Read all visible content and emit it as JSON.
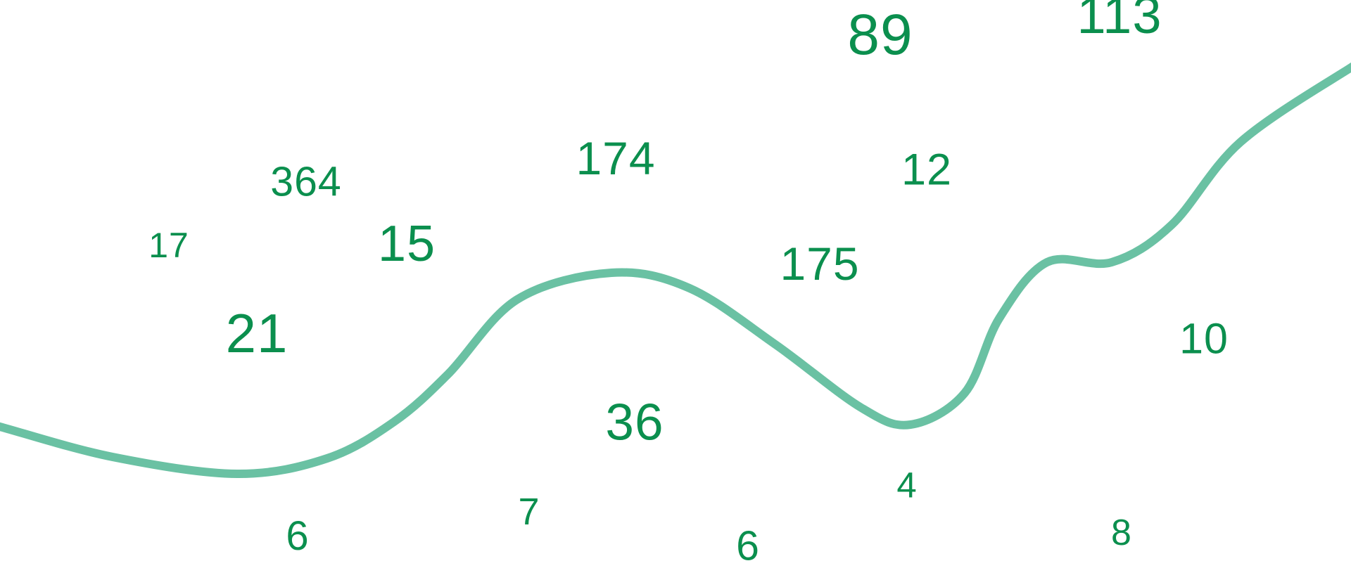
{
  "colors": {
    "numbers": "#0b8f4e",
    "curve": "#6ac1a3",
    "background": "#ffffff"
  },
  "numbers": [
    "89",
    "113",
    "174",
    "364",
    "12",
    "17",
    "15",
    "175",
    "21",
    "10",
    "36",
    "4",
    "7",
    "6",
    "6",
    "8"
  ]
}
